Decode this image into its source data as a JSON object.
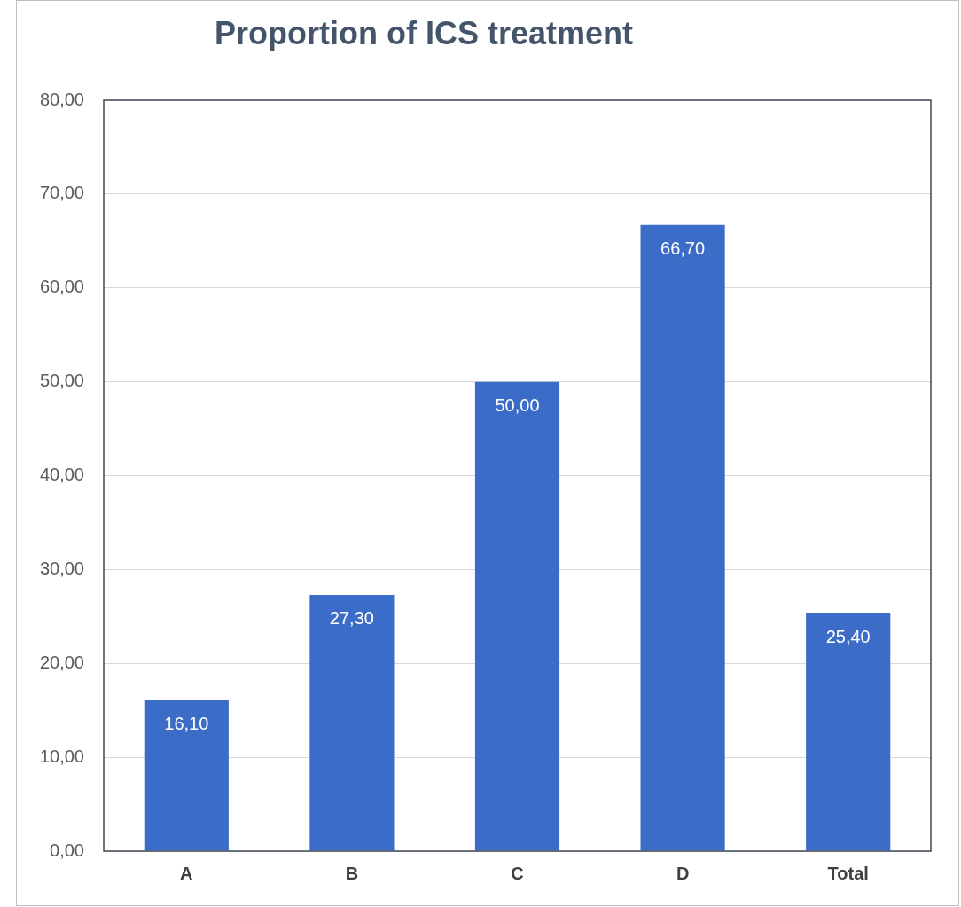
{
  "chart_data": {
    "type": "bar",
    "title": "Proportion of ICS treatment",
    "categories": [
      "A",
      "B",
      "C",
      "D",
      "Total"
    ],
    "values": [
      16.1,
      27.3,
      50,
      66.7,
      25.4
    ],
    "value_labels": [
      "16,10",
      "27,30",
      "50,00",
      "66,70",
      "25,40"
    ],
    "color": "#3b6cc8",
    "ylim": [
      0,
      80
    ],
    "yticks": [
      {
        "value": 0,
        "label": "0,00"
      },
      {
        "value": 10,
        "label": "10,00"
      },
      {
        "value": 20,
        "label": "20,00"
      },
      {
        "value": 30,
        "label": "30,00"
      },
      {
        "value": 40,
        "label": "40,00"
      },
      {
        "value": 50,
        "label": "50,00"
      },
      {
        "value": 60,
        "label": "60,00"
      },
      {
        "value": 70,
        "label": "70,00"
      },
      {
        "value": 80,
        "label": "80,00"
      }
    ],
    "grid": "y",
    "legend": false
  }
}
